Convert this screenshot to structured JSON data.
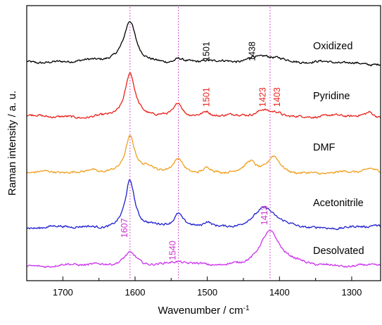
{
  "chart_data": {
    "type": "line",
    "title": "",
    "xlabel": "Wavenumber / cm",
    "xlabel_sup": "-1",
    "ylabel": "Raman intensity / a. u.",
    "xlim": [
      1750,
      1260
    ],
    "x_reversed": true,
    "x_ticks": [
      1700,
      1600,
      1500,
      1400,
      1300
    ],
    "y_ticks_shown": false,
    "reference_lines": [
      {
        "x": 1607,
        "color": "#cc33cc",
        "style": "dotted"
      },
      {
        "x": 1540,
        "color": "#cc33cc",
        "style": "dotted"
      },
      {
        "x": 1413,
        "color": "#cc33cc",
        "style": "dotted"
      }
    ],
    "series": [
      {
        "name": "Oxidized",
        "color": "#000000",
        "offset": 4,
        "peaks": [
          {
            "x": 1607,
            "h": 0.58,
            "w": 10
          },
          {
            "x": 1540,
            "h": 0.07,
            "w": 8
          },
          {
            "x": 1501,
            "h": 0.03,
            "w": 7
          },
          {
            "x": 1438,
            "h": 0.06,
            "w": 8
          },
          {
            "x": 1420,
            "h": 0.08,
            "w": 12
          },
          {
            "x": 1403,
            "h": 0.07,
            "w": 14
          },
          {
            "x": 1680,
            "h": 0.04,
            "w": 35
          }
        ],
        "annotations": [
          {
            "x": 1501,
            "text": "1501",
            "color": "#000000"
          },
          {
            "x": 1438,
            "text": "1438",
            "color": "#000000"
          }
        ]
      },
      {
        "name": "Pyridine",
        "color": "#e8211a",
        "offset": 3,
        "peaks": [
          {
            "x": 1607,
            "h": 0.6,
            "w": 8
          },
          {
            "x": 1540,
            "h": 0.21,
            "w": 7
          },
          {
            "x": 1501,
            "h": 0.07,
            "w": 6
          },
          {
            "x": 1423,
            "h": 0.08,
            "w": 10
          },
          {
            "x": 1403,
            "h": 0.07,
            "w": 10
          },
          {
            "x": 1275,
            "h": 0.06,
            "w": 6
          }
        ],
        "annotations": [
          {
            "x": 1501,
            "text": "1501",
            "color": "#e8211a"
          },
          {
            "x": 1423,
            "text": "1423",
            "color": "#e8211a"
          },
          {
            "x": 1403,
            "text": "1403",
            "color": "#e8211a"
          }
        ]
      },
      {
        "name": "DMF",
        "color": "#f0a020",
        "offset": 2,
        "peaks": [
          {
            "x": 1607,
            "h": 0.52,
            "w": 8
          },
          {
            "x": 1660,
            "h": 0.07,
            "w": 7
          },
          {
            "x": 1580,
            "h": 0.06,
            "w": 6
          },
          {
            "x": 1540,
            "h": 0.19,
            "w": 8
          },
          {
            "x": 1500,
            "h": 0.07,
            "w": 7
          },
          {
            "x": 1440,
            "h": 0.14,
            "w": 8
          },
          {
            "x": 1408,
            "h": 0.22,
            "w": 10
          },
          {
            "x": 1275,
            "h": 0.05,
            "w": 8
          }
        ],
        "annotations": []
      },
      {
        "name": "Acetonitrile",
        "color": "#1f1fd0",
        "offset": 1,
        "peaks": [
          {
            "x": 1607,
            "h": 0.68,
            "w": 8
          },
          {
            "x": 1540,
            "h": 0.18,
            "w": 7
          },
          {
            "x": 1500,
            "h": 0.09,
            "w": 7
          },
          {
            "x": 1420,
            "h": 0.28,
            "w": 17
          },
          {
            "x": 1270,
            "h": 0.03,
            "w": 5
          }
        ],
        "annotations": []
      },
      {
        "name": "Desolvated",
        "color": "#cc33ee",
        "offset": 0,
        "peaks": [
          {
            "x": 1607,
            "h": 0.19,
            "w": 12
          },
          {
            "x": 1540,
            "h": 0.04,
            "w": 10
          },
          {
            "x": 1413,
            "h": 0.48,
            "w": 17
          }
        ],
        "annotations": [
          {
            "x": 1607,
            "text": "1607",
            "color": "#cc33cc"
          },
          {
            "x": 1540,
            "text": "1540",
            "color": "#cc33cc"
          },
          {
            "x": 1413,
            "text": "1413",
            "color": "#cc33cc"
          }
        ]
      }
    ]
  }
}
